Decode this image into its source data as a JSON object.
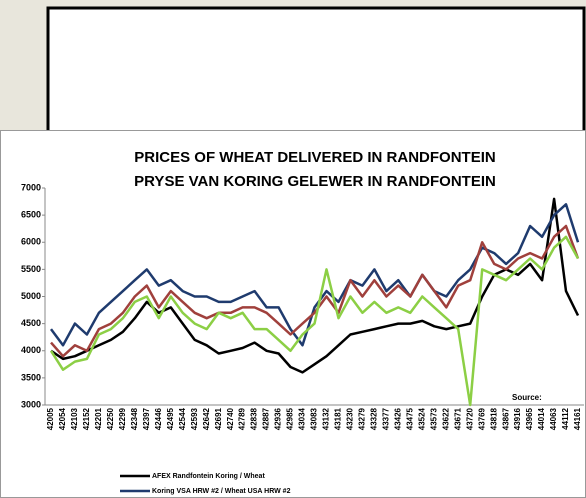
{
  "chart_data": {
    "type": "line",
    "title": "PRICES OF WHEAT DELIVERED IN RANDFONTEIN",
    "subtitle": "PRYSE VAN KORING GELEWER IN RANDFONTEIN",
    "source": "Source:",
    "categories": [
      "42005",
      "42054",
      "42103",
      "42152",
      "42201",
      "42250",
      "42299",
      "42348",
      "42397",
      "42446",
      "42495",
      "42544",
      "42593",
      "42642",
      "42691",
      "42740",
      "42789",
      "42838",
      "42887",
      "42936",
      "42985",
      "43034",
      "43083",
      "43132",
      "43181",
      "43230",
      "43279",
      "43328",
      "43377",
      "43426",
      "43475",
      "43524",
      "43573",
      "43622",
      "43671",
      "43720",
      "43769",
      "43818",
      "43867",
      "43916",
      "43965",
      "44014",
      "44063",
      "44112",
      "44161"
    ],
    "series": [
      {
        "name": "AFEX  Randfontein Koring / Wheat",
        "color": "#000000",
        "values": [
          4000,
          3850,
          3900,
          4000,
          4100,
          4200,
          4350,
          4600,
          4900,
          4700,
          4800,
          4500,
          4200,
          4100,
          3950,
          4000,
          4050,
          4150,
          4000,
          3950,
          3700,
          3600,
          3750,
          3900,
          4100,
          4300,
          4350,
          4400,
          4450,
          4500,
          4500,
          4550,
          4450,
          4400,
          4450,
          4500,
          5000,
          5400,
          5500,
          5400,
          5600,
          5300,
          6800,
          5100,
          4650
        ]
      },
      {
        "name": "Koring VSA HRW #2 / Wheat USA HRW #2",
        "color": "#1f3b6e",
        "values": [
          4400,
          4100,
          4500,
          4300,
          4700,
          4900,
          5100,
          5300,
          5500,
          5200,
          5300,
          5100,
          5000,
          5000,
          4900,
          4900,
          5000,
          5100,
          4800,
          4800,
          4400,
          4100,
          4800,
          5100,
          4900,
          5300,
          5200,
          5500,
          5100,
          5300,
          5000,
          5400,
          5100,
          5000,
          5300,
          5500,
          5900,
          5800,
          5600,
          5800,
          6300,
          6100,
          6500,
          6700,
          6000
        ]
      },
      {
        "color": "#a0403c",
        "values": [
          4150,
          3900,
          4100,
          4000,
          4400,
          4500,
          4700,
          5000,
          5200,
          4800,
          5100,
          4900,
          4700,
          4600,
          4700,
          4700,
          4800,
          4800,
          4700,
          4500,
          4300,
          4500,
          4700,
          5000,
          4700,
          5300,
          5000,
          5300,
          5000,
          5200,
          5000,
          5400,
          5100,
          4800,
          5200,
          5300,
          6000,
          5600,
          5500,
          5700,
          5800,
          5700,
          6100,
          6300,
          5700
        ]
      },
      {
        "color": "#8ccf45",
        "values": [
          4000,
          3650,
          3800,
          3850,
          4300,
          4400,
          4600,
          4900,
          5000,
          4600,
          5000,
          4700,
          4500,
          4400,
          4700,
          4600,
          4700,
          4400,
          4400,
          4200,
          4000,
          4300,
          4500,
          5500,
          4600,
          5000,
          4700,
          4900,
          4700,
          4800,
          4700,
          5000,
          4800,
          4600,
          4400,
          3000,
          5500,
          5400,
          5300,
          5500,
          5700,
          5500,
          5900,
          6100,
          5700
        ]
      }
    ],
    "ylim": [
      3000,
      7000
    ],
    "yticks": [
      3000,
      3500,
      4000,
      4500,
      5000,
      5500,
      6000,
      6500,
      7000
    ]
  }
}
